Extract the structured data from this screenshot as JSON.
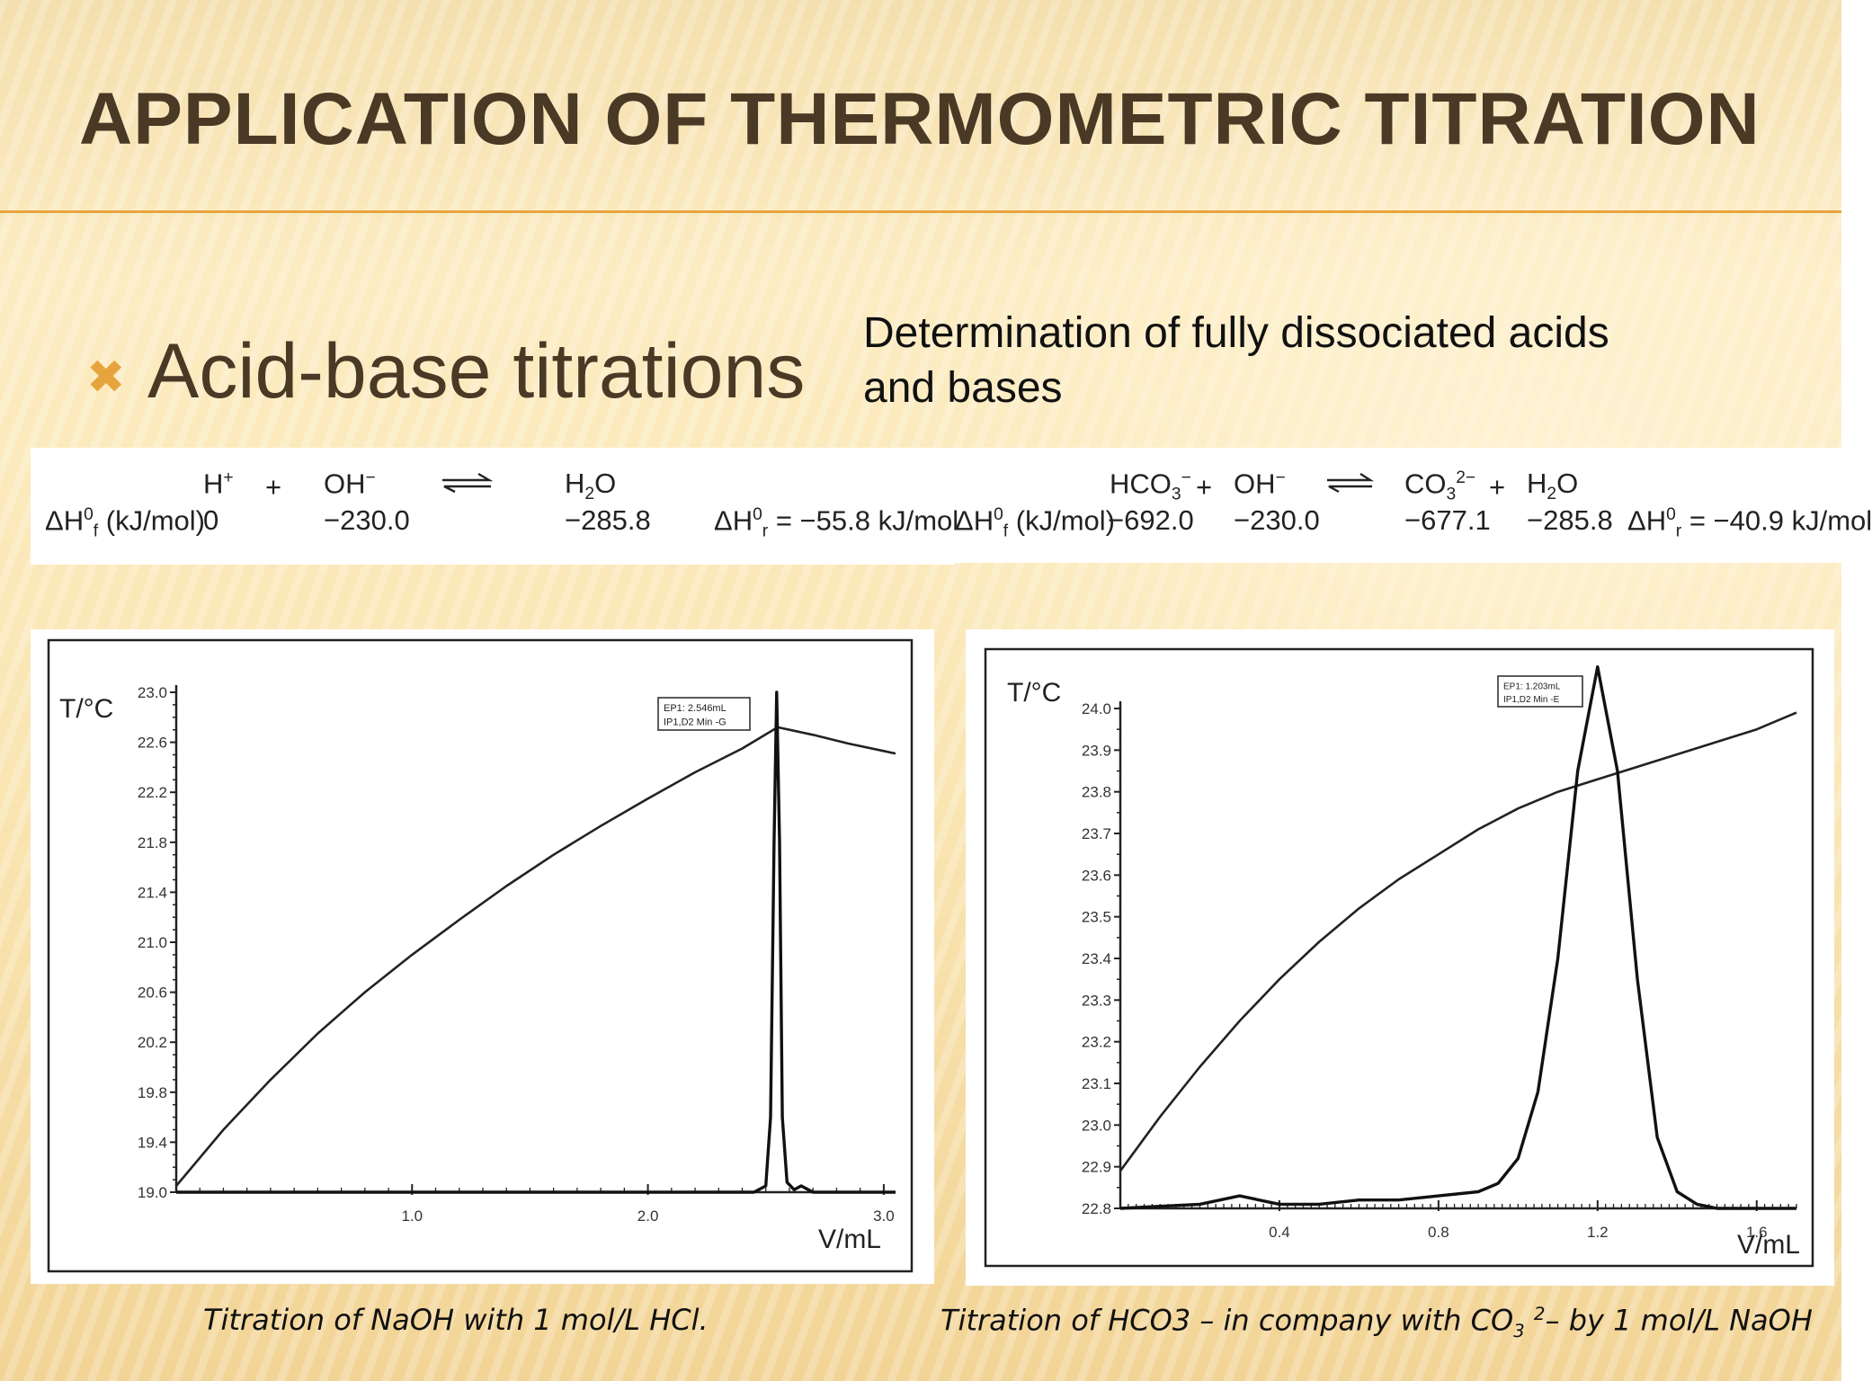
{
  "slide": {
    "title": "APPLICATION OF THERMOMETRIC TITRATION",
    "bullet_icon": "x-icon",
    "bullet_text": "Acid-base titrations",
    "bullet_sub_line1": "Determination of fully dissociated acids",
    "bullet_sub_line2": "and bases",
    "colors": {
      "title": "#4a3925",
      "accent": "#e7a43e",
      "background": "#fbe7b4"
    }
  },
  "equations": {
    "left": {
      "sp1": "H",
      "sp1_sup": "+",
      "plus1": "+",
      "sp2": "OH",
      "sp2_sup": "−",
      "sp3_a": "H",
      "sp3_sub": "2",
      "sp3_b": "O",
      "label_a": "ΔH",
      "label_sup": "0",
      "label_sub": "f",
      "label_b": " (kJ/mol)",
      "v1": "0",
      "v2": "−230.0",
      "v3": "−285.8",
      "dhr_a": "ΔH",
      "dhr_sup": "0",
      "dhr_sub": "r",
      "dhr_b": " = −55.8 kJ/mol"
    },
    "right": {
      "sp1_a": "HCO",
      "sp1_sub": "3",
      "sp1_sup": "−",
      "plus1": "+",
      "sp2": "OH",
      "sp2_sup": "−",
      "sp3_a": "CO",
      "sp3_sub": "3",
      "sp3_sup": "2−",
      "plus2": "+",
      "sp4_a": "H",
      "sp4_sub": "2",
      "sp4_b": "O",
      "label_a": "ΔH",
      "label_sup": "0",
      "label_sub": "f",
      "label_b": " (kJ/mol)",
      "v1": "−692.0",
      "v2": "−230.0",
      "v3": "−677.1",
      "v4": "−285.8",
      "dhr_a": "ΔH",
      "dhr_sup": "0",
      "dhr_sub": "r",
      "dhr_b": " = −40.9 kJ/mol"
    }
  },
  "chart_data": [
    {
      "type": "line",
      "ylabel": "T/°C",
      "xlabel": "V/mL",
      "xlim": [
        0,
        3.05
      ],
      "ylim": [
        19.0,
        23.0
      ],
      "xticks": [
        "1.0",
        "2.0",
        "3.0"
      ],
      "yticks": [
        "19.0",
        "19.4",
        "19.8",
        "20.2",
        "20.6",
        "21.0",
        "21.4",
        "21.8",
        "22.2",
        "22.6",
        "23.0"
      ],
      "annotation_line1": "EP1: 2.546mL",
      "annotation_line2": "IP1,D2 Min -G",
      "caption": "Titration of NaOH with 1 mol/L HCl.",
      "temperature": {
        "x": [
          0,
          0.2,
          0.4,
          0.6,
          0.8,
          1.0,
          1.2,
          1.4,
          1.6,
          1.8,
          2.0,
          2.2,
          2.4,
          2.55,
          2.7,
          2.85,
          3.0,
          3.05
        ],
        "y": [
          19.05,
          19.5,
          19.9,
          20.27,
          20.6,
          20.9,
          21.18,
          21.45,
          21.7,
          21.93,
          22.15,
          22.36,
          22.55,
          22.72,
          22.66,
          22.59,
          22.53,
          22.51
        ]
      },
      "derivative": {
        "x": [
          0,
          2.45,
          2.5,
          2.52,
          2.535,
          2.546,
          2.558,
          2.57,
          2.59,
          2.62,
          2.65,
          2.7,
          2.75,
          3.05
        ],
        "y": [
          19.0,
          19.0,
          19.05,
          19.6,
          21.8,
          23.0,
          21.8,
          19.6,
          19.08,
          19.02,
          19.05,
          19.0,
          19.0,
          19.0
        ]
      }
    },
    {
      "type": "line",
      "ylabel": "T/°C",
      "xlabel": "V/mL",
      "xlim": [
        0,
        1.7
      ],
      "ylim": [
        22.8,
        24.0
      ],
      "xticks": [
        "0.4",
        "0.8",
        "1.2",
        "1.6"
      ],
      "yticks": [
        "22.8",
        "22.9",
        "23.0",
        "23.1",
        "23.2",
        "23.3",
        "23.4",
        "23.5",
        "23.6",
        "23.7",
        "23.8",
        "23.9",
        "24.0"
      ],
      "annotation_line1": "EP1: 1.203mL",
      "annotation_line2": "IP1,D2 Min -E",
      "caption_a": "Titration of HCO3 – in company with CO",
      "caption_sub": "3",
      "caption_sup": "2",
      "caption_b": "– by 1 mol/L NaOH",
      "temperature": {
        "x": [
          0,
          0.1,
          0.2,
          0.3,
          0.4,
          0.5,
          0.6,
          0.7,
          0.8,
          0.9,
          1.0,
          1.1,
          1.2,
          1.3,
          1.4,
          1.5,
          1.6,
          1.7
        ],
        "y": [
          22.89,
          23.02,
          23.14,
          23.25,
          23.35,
          23.44,
          23.52,
          23.59,
          23.65,
          23.71,
          23.76,
          23.8,
          23.83,
          23.86,
          23.89,
          23.92,
          23.95,
          23.99
        ]
      },
      "derivative": {
        "x": [
          0,
          0.2,
          0.3,
          0.4,
          0.5,
          0.6,
          0.7,
          0.8,
          0.9,
          0.95,
          1.0,
          1.05,
          1.1,
          1.15,
          1.2,
          1.25,
          1.3,
          1.35,
          1.4,
          1.45,
          1.5,
          1.6,
          1.7
        ],
        "y": [
          22.8,
          22.81,
          22.83,
          22.81,
          22.81,
          22.82,
          22.82,
          22.83,
          22.84,
          22.86,
          22.92,
          23.08,
          23.4,
          23.85,
          24.1,
          23.85,
          23.35,
          22.97,
          22.84,
          22.81,
          22.8,
          22.8,
          22.8
        ]
      }
    }
  ]
}
